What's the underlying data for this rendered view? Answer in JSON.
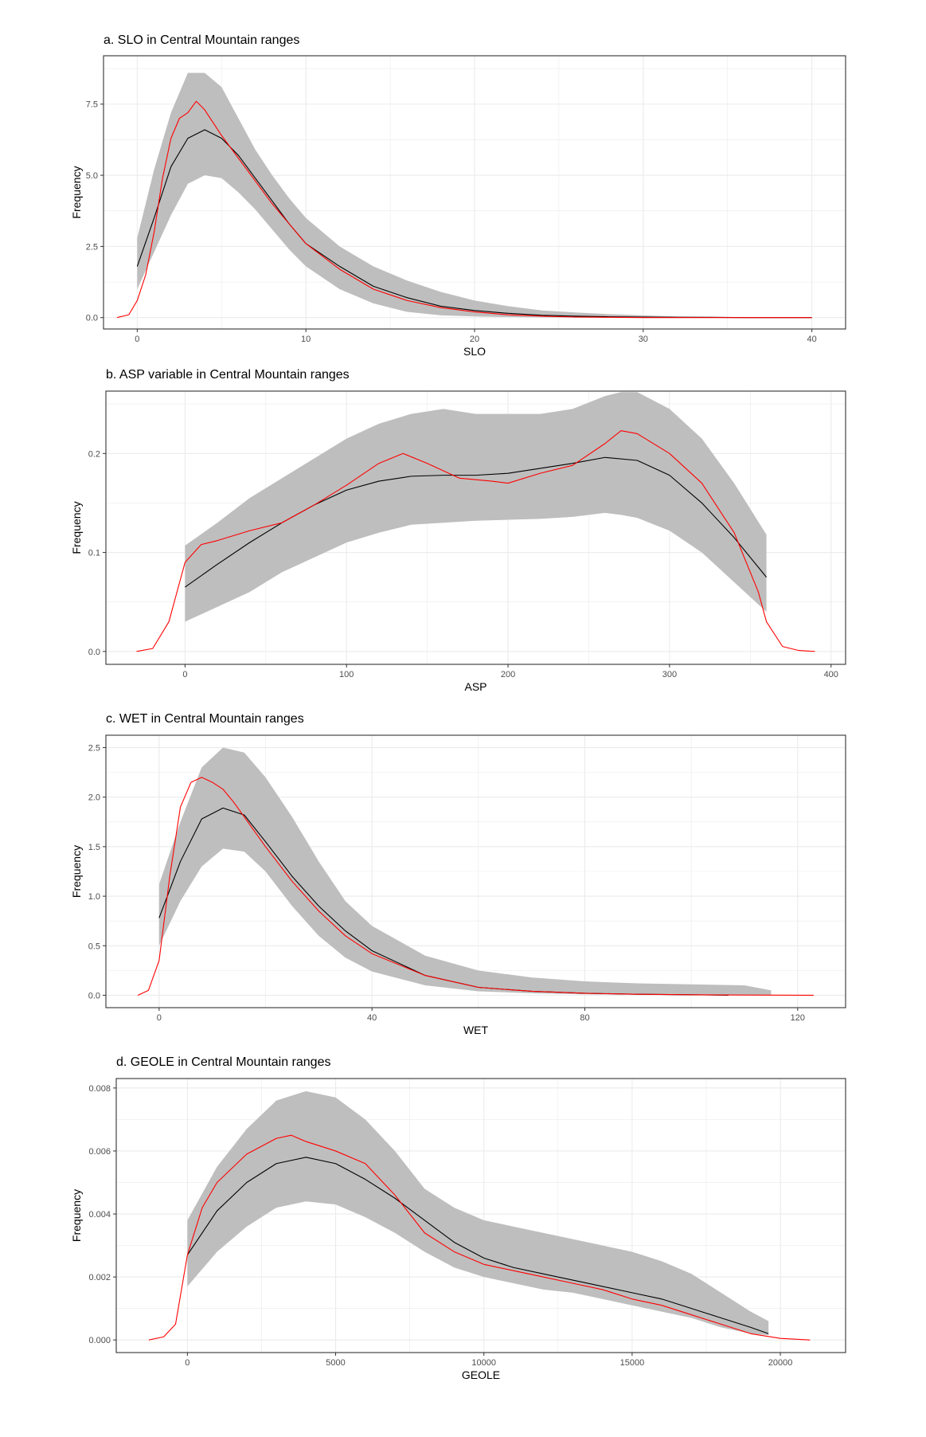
{
  "chart_data": [
    {
      "type": "line",
      "title": "a. SLO in Central Mountain ranges",
      "xlabel": "SLO",
      "ylabel": "Frequency",
      "xlim": [
        -2,
        42
      ],
      "ylim": [
        -0.4,
        9.2
      ],
      "xticks": [
        0,
        10,
        20,
        30,
        40
      ],
      "yticks": [
        0.0,
        2.5,
        5.0,
        7.5
      ],
      "ytick_labels": [
        "0.0",
        "2.5",
        "5.0",
        "7.5"
      ],
      "grid": true,
      "colors": {
        "band": "#bebebe",
        "mean": "#000000",
        "observed": "#ff0000"
      },
      "series": [
        {
          "kind": "band",
          "x": [
            0,
            1,
            2,
            3,
            4,
            5,
            6,
            7,
            8,
            9,
            10,
            12,
            14,
            16,
            18,
            20,
            22,
            24,
            26,
            28,
            30,
            32,
            34,
            36,
            38,
            40
          ],
          "lower": [
            1.0,
            2.3,
            3.6,
            4.7,
            5.0,
            4.9,
            4.4,
            3.8,
            3.1,
            2.4,
            1.8,
            1.0,
            0.5,
            0.2,
            0.08,
            0.04,
            0.02,
            0.01,
            0,
            0,
            0,
            0,
            0,
            0,
            0,
            0
          ],
          "upper": [
            2.8,
            5.2,
            7.2,
            8.6,
            8.6,
            8.1,
            7.0,
            5.9,
            5.0,
            4.2,
            3.5,
            2.5,
            1.8,
            1.3,
            0.9,
            0.6,
            0.4,
            0.25,
            0.18,
            0.12,
            0.08,
            0.04,
            0.02,
            0.01,
            0.01,
            0.01
          ]
        },
        {
          "kind": "mean",
          "x": [
            0,
            1,
            2,
            3,
            4,
            5,
            6,
            7,
            8,
            9,
            10,
            12,
            14,
            16,
            18,
            20,
            22,
            24,
            26,
            28,
            30,
            32,
            34,
            36,
            38,
            40
          ],
          "y": [
            1.8,
            3.5,
            5.3,
            6.3,
            6.6,
            6.3,
            5.7,
            4.9,
            4.1,
            3.3,
            2.6,
            1.8,
            1.1,
            0.7,
            0.4,
            0.25,
            0.15,
            0.08,
            0.05,
            0.03,
            0.02,
            0.01,
            0.01,
            0.0,
            0.0,
            0.0
          ]
        },
        {
          "kind": "observed",
          "x": [
            -1.2,
            -0.5,
            0,
            0.5,
            1,
            1.5,
            2,
            2.5,
            3,
            3.5,
            4,
            5,
            6,
            7,
            8,
            9,
            10,
            12,
            14,
            16,
            18,
            20,
            22,
            24,
            26,
            28,
            30,
            35,
            40
          ],
          "y": [
            0.0,
            0.1,
            0.6,
            1.5,
            3.0,
            4.9,
            6.3,
            7.0,
            7.2,
            7.6,
            7.3,
            6.4,
            5.6,
            4.8,
            4.0,
            3.3,
            2.6,
            1.7,
            1.0,
            0.6,
            0.35,
            0.2,
            0.1,
            0.05,
            0.02,
            0.01,
            0.0,
            0.0,
            0.0
          ]
        }
      ]
    },
    {
      "type": "line",
      "title": "b. ASP variable in Central Mountain ranges",
      "xlabel": "ASP",
      "ylabel": "Frequency",
      "xlim": [
        -49,
        409
      ],
      "ylim": [
        -0.013,
        0.263
      ],
      "xticks": [
        0,
        100,
        200,
        300,
        400
      ],
      "yticks": [
        0.0,
        0.1,
        0.2
      ],
      "ytick_labels": [
        "0.0",
        "0.1",
        "0.2"
      ],
      "grid": true,
      "colors": {
        "band": "#bebebe",
        "mean": "#000000",
        "observed": "#ff0000"
      },
      "series": [
        {
          "kind": "band",
          "x": [
            0,
            20,
            40,
            60,
            80,
            100,
            120,
            140,
            160,
            180,
            200,
            220,
            240,
            260,
            270,
            280,
            300,
            320,
            340,
            360
          ],
          "lower": [
            0.03,
            0.045,
            0.06,
            0.08,
            0.095,
            0.11,
            0.12,
            0.128,
            0.13,
            0.132,
            0.133,
            0.134,
            0.136,
            0.14,
            0.138,
            0.135,
            0.122,
            0.1,
            0.07,
            0.04
          ],
          "upper": [
            0.107,
            0.13,
            0.155,
            0.175,
            0.195,
            0.215,
            0.23,
            0.24,
            0.245,
            0.24,
            0.24,
            0.24,
            0.245,
            0.258,
            0.262,
            0.262,
            0.245,
            0.215,
            0.17,
            0.118
          ]
        },
        {
          "kind": "mean",
          "x": [
            0,
            20,
            40,
            60,
            80,
            100,
            120,
            140,
            160,
            180,
            200,
            220,
            240,
            260,
            280,
            300,
            320,
            340,
            360
          ],
          "y": [
            0.065,
            0.088,
            0.11,
            0.13,
            0.148,
            0.163,
            0.172,
            0.177,
            0.178,
            0.178,
            0.18,
            0.185,
            0.19,
            0.196,
            0.193,
            0.178,
            0.15,
            0.115,
            0.075
          ]
        },
        {
          "kind": "observed",
          "x": [
            -30,
            -20,
            -10,
            0,
            10,
            20,
            40,
            60,
            80,
            100,
            120,
            135,
            150,
            170,
            190,
            200,
            220,
            240,
            260,
            270,
            280,
            300,
            320,
            340,
            355,
            360,
            370,
            380,
            390
          ],
          "y": [
            0.0,
            0.003,
            0.03,
            0.09,
            0.108,
            0.112,
            0.122,
            0.13,
            0.148,
            0.168,
            0.19,
            0.2,
            0.19,
            0.175,
            0.172,
            0.17,
            0.18,
            0.188,
            0.21,
            0.223,
            0.22,
            0.2,
            0.17,
            0.12,
            0.06,
            0.03,
            0.005,
            0.001,
            0.0
          ]
        }
      ]
    },
    {
      "type": "line",
      "title": "c. WET in Central Mountain ranges",
      "xlabel": "WET",
      "ylabel": "Frequency",
      "xlim": [
        -10,
        129
      ],
      "ylim": [
        -0.125,
        2.625
      ],
      "xticks": [
        0,
        40,
        80,
        120
      ],
      "yticks": [
        0.0,
        0.5,
        1.0,
        1.5,
        2.0,
        2.5
      ],
      "ytick_labels": [
        "0.0",
        "0.5",
        "1.0",
        "1.5",
        "2.0",
        "2.5"
      ],
      "grid": true,
      "colors": {
        "band": "#bebebe",
        "mean": "#000000",
        "observed": "#ff0000"
      },
      "series": [
        {
          "kind": "band",
          "x": [
            0,
            4,
            8,
            12,
            16,
            20,
            25,
            30,
            35,
            40,
            50,
            60,
            70,
            80,
            90,
            100,
            110,
            115
          ],
          "lower": [
            0.5,
            0.95,
            1.3,
            1.48,
            1.45,
            1.25,
            0.9,
            0.6,
            0.38,
            0.24,
            0.1,
            0.04,
            0.02,
            0.01,
            0.005,
            0.0,
            0.0,
            0.0
          ],
          "upper": [
            1.12,
            1.75,
            2.3,
            2.5,
            2.45,
            2.2,
            1.8,
            1.35,
            0.95,
            0.7,
            0.4,
            0.25,
            0.18,
            0.14,
            0.12,
            0.11,
            0.1,
            0.05
          ]
        },
        {
          "kind": "mean",
          "x": [
            0,
            4,
            8,
            12,
            16,
            20,
            25,
            30,
            35,
            40,
            50,
            60,
            70,
            80,
            90,
            100,
            107
          ],
          "y": [
            0.78,
            1.35,
            1.78,
            1.89,
            1.82,
            1.55,
            1.2,
            0.9,
            0.65,
            0.45,
            0.2,
            0.08,
            0.04,
            0.02,
            0.01,
            0.005,
            0.0
          ]
        },
        {
          "kind": "observed",
          "x": [
            -4,
            -2,
            0,
            2,
            4,
            6,
            8,
            10,
            12,
            14,
            16,
            20,
            25,
            30,
            35,
            40,
            50,
            60,
            70,
            80,
            90,
            100,
            110,
            123
          ],
          "y": [
            0.0,
            0.05,
            0.35,
            1.2,
            1.9,
            2.15,
            2.2,
            2.15,
            2.08,
            1.95,
            1.8,
            1.5,
            1.15,
            0.85,
            0.6,
            0.42,
            0.2,
            0.08,
            0.04,
            0.02,
            0.01,
            0.005,
            0.002,
            0.0
          ]
        }
      ]
    },
    {
      "type": "line",
      "title": "d. GEOLE in Central Mountain ranges",
      "xlabel": "GEOLE",
      "ylabel": "Frequency",
      "xlim": [
        -2400,
        22200
      ],
      "ylim": [
        -0.0004,
        0.0083
      ],
      "xticks": [
        0,
        5000,
        10000,
        15000,
        20000
      ],
      "yticks": [
        0.0,
        0.002,
        0.004,
        0.006,
        0.008
      ],
      "ytick_labels": [
        "0.000",
        "0.002",
        "0.004",
        "0.006",
        "0.008"
      ],
      "grid": true,
      "colors": {
        "band": "#bebebe",
        "mean": "#000000",
        "observed": "#ff0000"
      },
      "series": [
        {
          "kind": "band",
          "x": [
            0,
            1000,
            2000,
            3000,
            4000,
            5000,
            6000,
            7000,
            8000,
            9000,
            10000,
            11000,
            12000,
            13000,
            14000,
            15000,
            16000,
            17000,
            18000,
            19000,
            19600
          ],
          "lower": [
            0.0017,
            0.0028,
            0.0036,
            0.0042,
            0.0044,
            0.0043,
            0.0039,
            0.0034,
            0.0028,
            0.0023,
            0.002,
            0.0018,
            0.0016,
            0.0015,
            0.0013,
            0.0011,
            0.0009,
            0.0007,
            0.0004,
            0.0002,
            0.00015
          ],
          "upper": [
            0.0038,
            0.0055,
            0.0067,
            0.0076,
            0.0079,
            0.0077,
            0.007,
            0.006,
            0.0048,
            0.0042,
            0.0038,
            0.0036,
            0.0034,
            0.0032,
            0.003,
            0.0028,
            0.0025,
            0.0021,
            0.0015,
            0.0009,
            0.0006
          ]
        },
        {
          "kind": "mean",
          "x": [
            0,
            1000,
            2000,
            3000,
            4000,
            5000,
            6000,
            7000,
            8000,
            9000,
            10000,
            11000,
            12000,
            13000,
            14000,
            15000,
            16000,
            17000,
            18000,
            19000,
            19600
          ],
          "y": [
            0.0027,
            0.0041,
            0.005,
            0.0056,
            0.0058,
            0.0056,
            0.0051,
            0.0045,
            0.0038,
            0.0031,
            0.0026,
            0.0023,
            0.0021,
            0.0019,
            0.0017,
            0.0015,
            0.0013,
            0.001,
            0.0007,
            0.0004,
            0.0002
          ]
        },
        {
          "kind": "observed",
          "x": [
            -1300,
            -800,
            -400,
            0,
            500,
            1000,
            2000,
            3000,
            3500,
            4000,
            5000,
            6000,
            7000,
            8000,
            9000,
            10000,
            11000,
            12000,
            13000,
            14000,
            15000,
            16000,
            17000,
            18000,
            19000,
            20000,
            21000
          ],
          "y": [
            0.0,
            0.0001,
            0.0005,
            0.0027,
            0.0042,
            0.005,
            0.0059,
            0.0064,
            0.0065,
            0.0063,
            0.006,
            0.0056,
            0.0046,
            0.0034,
            0.0028,
            0.0024,
            0.0022,
            0.002,
            0.0018,
            0.0016,
            0.0013,
            0.0011,
            0.0008,
            0.0005,
            0.0002,
            5e-05,
            0.0
          ]
        }
      ]
    }
  ]
}
